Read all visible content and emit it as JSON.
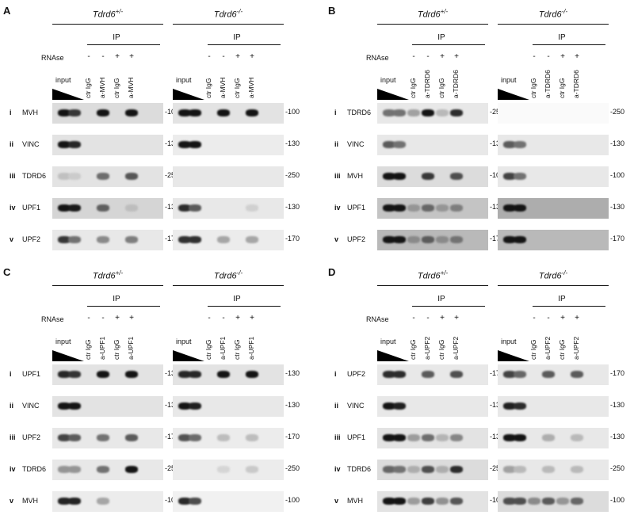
{
  "panels": [
    {
      "label": "A",
      "genotypes": [
        "Tdrd6+/-",
        "Tdrd6-/-"
      ],
      "ip_label": "IP",
      "rnase_label": "RNAse",
      "rnase_signs": [
        "-",
        "-",
        "+",
        "+"
      ],
      "input_label": "input",
      "lanes": [
        "ctr IgG",
        "a-MVH",
        "ctr IgG",
        "a-MVH"
      ],
      "rows": [
        {
          "roman": "i",
          "protein": "MVH",
          "mw": "-100"
        },
        {
          "roman": "ii",
          "protein": "VINC",
          "mw": "-130"
        },
        {
          "roman": "iii",
          "protein": "TDRD6",
          "mw": "-250"
        },
        {
          "roman": "iv",
          "protein": "UPF1",
          "mw": "-130"
        },
        {
          "roman": "v",
          "protein": "UPF2",
          "mw": "-170"
        }
      ]
    },
    {
      "label": "B",
      "genotypes": [
        "Tdrd6+/-",
        "Tdrd6-/-"
      ],
      "ip_label": "IP",
      "rnase_label": "RNAse",
      "rnase_signs": [
        "-",
        "-",
        "+",
        "+"
      ],
      "input_label": "input",
      "lanes": [
        "ctr IgG",
        "a-TDRD6",
        "ctr IgG",
        "a-TDRD6"
      ],
      "rows": [
        {
          "roman": "i",
          "protein": "TDRD6",
          "mw": "-250"
        },
        {
          "roman": "ii",
          "protein": "VINC",
          "mw": "-130"
        },
        {
          "roman": "iii",
          "protein": "MVH",
          "mw": "-100"
        },
        {
          "roman": "iv",
          "protein": "UPF1",
          "mw": "-130"
        },
        {
          "roman": "v",
          "protein": "UPF2",
          "mw": "-170"
        }
      ]
    },
    {
      "label": "C",
      "genotypes": [
        "Tdrd6+/-",
        "Tdrd6-/-"
      ],
      "ip_label": "IP",
      "rnase_label": "RNAse",
      "rnase_signs": [
        "-",
        "-",
        "+",
        "+"
      ],
      "input_label": "input",
      "lanes": [
        "ctr IgG",
        "a-UPF1",
        "ctr IgG",
        "a-UPF1"
      ],
      "rows": [
        {
          "roman": "i",
          "protein": "UPF1",
          "mw": "-130"
        },
        {
          "roman": "ii",
          "protein": "VINC",
          "mw": "-130"
        },
        {
          "roman": "iii",
          "protein": "UPF2",
          "mw": "-170"
        },
        {
          "roman": "iv",
          "protein": "TDRD6",
          "mw": "-250"
        },
        {
          "roman": "v",
          "protein": "MVH",
          "mw": "-100"
        }
      ]
    },
    {
      "label": "D",
      "genotypes": [
        "Tdrd6+/-",
        "Tdrd6-/-"
      ],
      "ip_label": "IP",
      "rnase_label": "RNAse",
      "rnase_signs": [
        "-",
        "-",
        "+",
        "+"
      ],
      "input_label": "input",
      "lanes": [
        "ctr IgG",
        "a-UPF2",
        "ctr IgG",
        "a-UPF2"
      ],
      "rows": [
        {
          "roman": "i",
          "protein": "UPF2",
          "mw": "-170"
        },
        {
          "roman": "ii",
          "protein": "VINC",
          "mw": "-130"
        },
        {
          "roman": "iii",
          "protein": "UPF1",
          "mw": "-130"
        },
        {
          "roman": "iv",
          "protein": "TDRD6",
          "mw": "-250"
        },
        {
          "roman": "v",
          "protein": "MVH",
          "mw": "-100"
        }
      ]
    }
  ]
}
